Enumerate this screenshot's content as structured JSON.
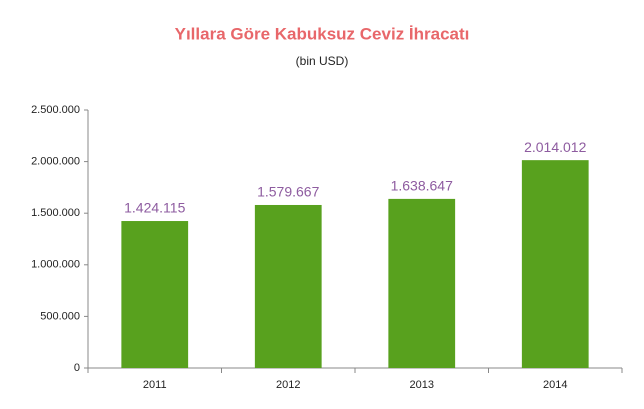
{
  "chart_data": {
    "type": "bar",
    "title": "Yıllara Göre Kabuksuz Ceviz İhracatı",
    "subtitle": "(bin USD)",
    "categories": [
      "2011",
      "2012",
      "2013",
      "2014"
    ],
    "values": [
      1424115,
      1579667,
      1638647,
      2014012
    ],
    "value_labels": [
      "1.424.115",
      "1.579.667",
      "1.638.647",
      "2.014.012"
    ],
    "color": "#58a11e",
    "ylim": [
      0,
      2500000
    ],
    "yticks": [
      0,
      {
        "value": 500000,
        "label": "500.000"
      },
      {
        "value": 1000000,
        "label": "1.000.000"
      },
      {
        "value": 1500000,
        "label": "1.500.000"
      },
      {
        "value": 2000000,
        "label": "2.000.000"
      },
      {
        "value": 2500000,
        "label": "2.500.000"
      }
    ],
    "grid": false
  }
}
